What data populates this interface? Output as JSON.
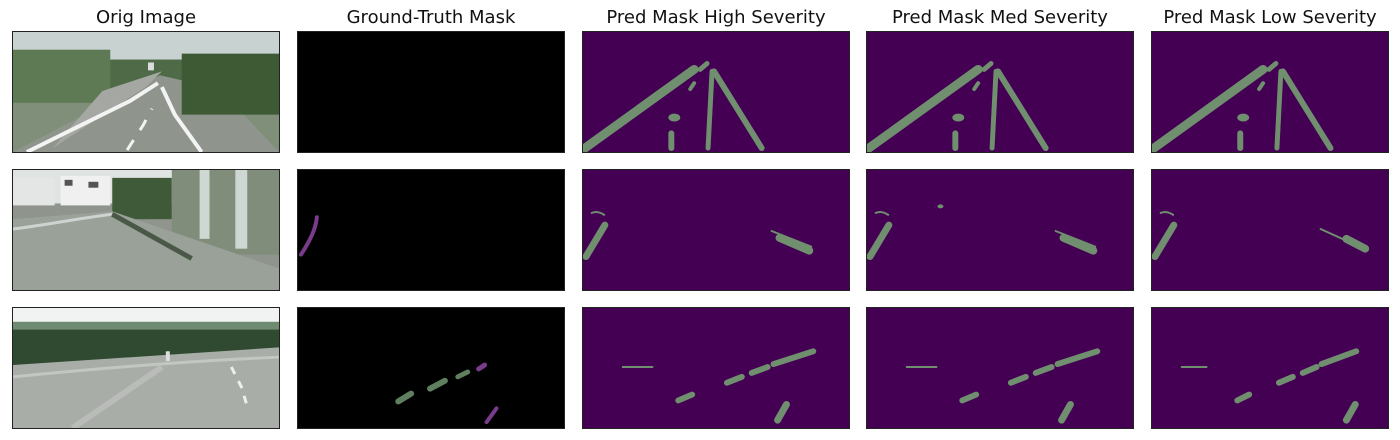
{
  "columns": [
    {
      "title": "Orig Image"
    },
    {
      "title": "Ground-Truth Mask"
    },
    {
      "title": "Pred Mask High Severity"
    },
    {
      "title": "Pred Mask Med Severity"
    },
    {
      "title": "Pred Mask Low Severity"
    }
  ],
  "rows": [
    {
      "name": "row-1"
    },
    {
      "name": "row-2"
    },
    {
      "name": "row-3"
    }
  ],
  "colors": {
    "mask_background": "#000000",
    "pred_background": "#440154",
    "lane_fill": "#6f8f6f",
    "gt_purple": "#7a3b8c",
    "gt_green": "#5f7f5f"
  }
}
